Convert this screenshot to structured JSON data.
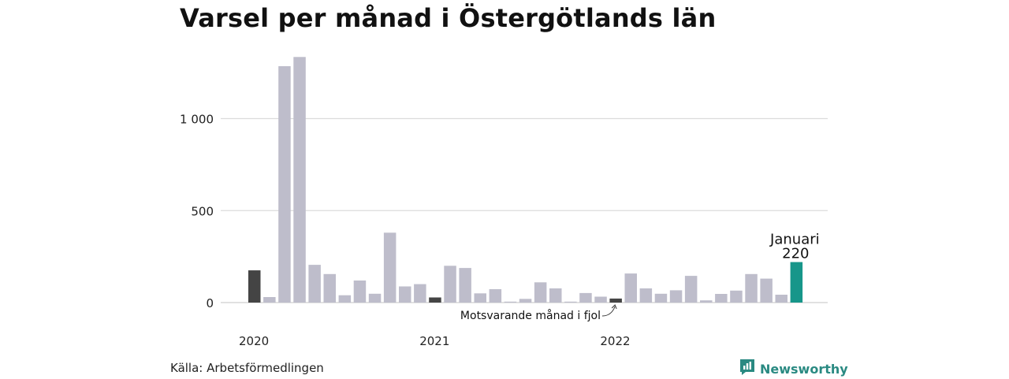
{
  "title": "Varsel per månad i Östergötlands län",
  "source": "Källa: Arbetsförmedlingen",
  "brand": {
    "name": "Newsworthy",
    "icon": "newsworthy-logo-icon",
    "color": "#2a8a82"
  },
  "chart_data": {
    "type": "bar",
    "title": "Varsel per månad i Östergötlands län",
    "xlabel": "",
    "ylabel": "",
    "ylim": [
      0,
      1350
    ],
    "yticks": [
      0,
      500,
      1000
    ],
    "ytick_labels": [
      "0",
      "500",
      "1 000"
    ],
    "grid": true,
    "year_labels": [
      {
        "index": 0,
        "label": "2020"
      },
      {
        "index": 12,
        "label": "2021"
      },
      {
        "index": 24,
        "label": "2022"
      }
    ],
    "categories": [
      "2020-01",
      "2020-02",
      "2020-03",
      "2020-04",
      "2020-05",
      "2020-06",
      "2020-07",
      "2020-08",
      "2020-09",
      "2020-10",
      "2020-11",
      "2020-12",
      "2021-01",
      "2021-02",
      "2021-03",
      "2021-04",
      "2021-05",
      "2021-06",
      "2021-07",
      "2021-08",
      "2021-09",
      "2021-10",
      "2021-11",
      "2021-12",
      "2022-01",
      "2022-02",
      "2022-03",
      "2022-04",
      "2022-05",
      "2022-06",
      "2022-07",
      "2022-08",
      "2022-09",
      "2022-10",
      "2022-11",
      "2022-12",
      "2023-01"
    ],
    "values": [
      175,
      30,
      1285,
      1335,
      205,
      155,
      40,
      120,
      48,
      380,
      88,
      100,
      28,
      200,
      188,
      50,
      73,
      5,
      20,
      110,
      77,
      5,
      52,
      32,
      22,
      158,
      77,
      48,
      67,
      145,
      12,
      47,
      65,
      155,
      130,
      43,
      220
    ],
    "colors": {
      "default": "#bebdcb",
      "same_month": "#444444",
      "current": "#17968a"
    },
    "same_month_indices": [
      0,
      12,
      24
    ],
    "current_index": 36,
    "annotations": {
      "same_month": "Motsvarande månad i fjol",
      "current_month": "Januari",
      "current_value": "220"
    }
  }
}
